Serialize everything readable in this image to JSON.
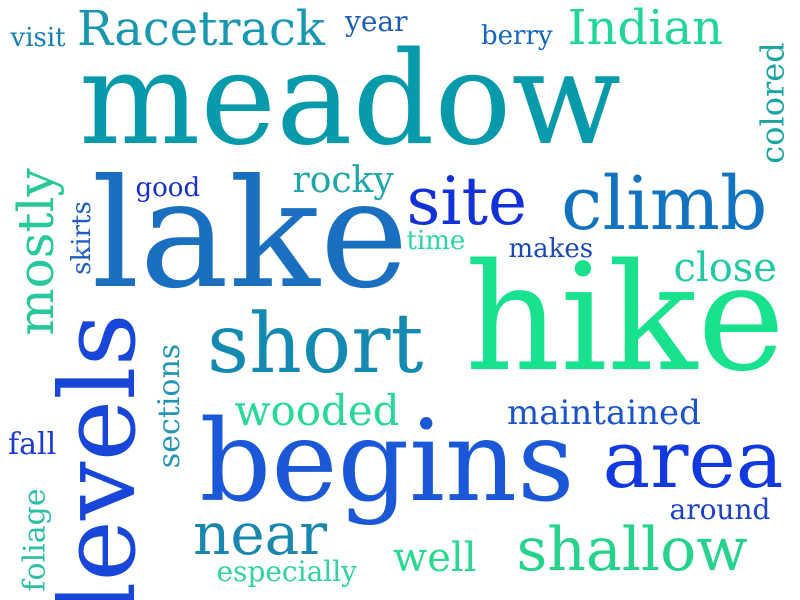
{
  "words": [
    {
      "text": "meadow",
      "color": "#079aaa",
      "rotate": 0
    },
    {
      "text": "lake",
      "color": "#1a6fc0",
      "rotate": 0
    },
    {
      "text": "hike",
      "color": "#18e28e",
      "rotate": 0
    },
    {
      "text": "begins",
      "color": "#1a58d8",
      "rotate": 0
    },
    {
      "text": "levels",
      "color": "#1846d8",
      "rotate": -90
    },
    {
      "text": "short",
      "color": "#148ab2",
      "rotate": 0
    },
    {
      "text": "climb",
      "color": "#1274c0",
      "rotate": 0
    },
    {
      "text": "area",
      "color": "#1238e0",
      "rotate": 0
    },
    {
      "text": "site",
      "color": "#1232d8",
      "rotate": 0
    },
    {
      "text": "shallow",
      "color": "#27d28c",
      "rotate": 0
    },
    {
      "text": "Racetrack",
      "color": "#1897b0",
      "rotate": 0
    },
    {
      "text": "Indian",
      "color": "#22d69a",
      "rotate": 0
    },
    {
      "text": "near",
      "color": "#1a88ae",
      "rotate": 0
    },
    {
      "text": "mostly",
      "color": "#27c89a",
      "rotate": -90
    },
    {
      "text": "wooded",
      "color": "#27d896",
      "rotate": 0
    },
    {
      "text": "close",
      "color": "#23c8a4",
      "rotate": 0
    },
    {
      "text": "rocky",
      "color": "#1ea6a8",
      "rotate": 0
    },
    {
      "text": "maintained",
      "color": "#1a54c8",
      "rotate": 0
    },
    {
      "text": "well",
      "color": "#2ad890",
      "rotate": 0
    },
    {
      "text": "colored",
      "color": "#1aa5a2",
      "rotate": -90
    },
    {
      "text": "sections",
      "color": "#2694b4",
      "rotate": -90
    },
    {
      "text": "foliage",
      "color": "#2cbfa6",
      "rotate": -90
    },
    {
      "text": "around",
      "color": "#1b42c8",
      "rotate": 0
    },
    {
      "text": "especially",
      "color": "#2fd49e",
      "rotate": 0
    },
    {
      "text": "fall",
      "color": "#1a3ad0",
      "rotate": 0
    },
    {
      "text": "good",
      "color": "#1530cc",
      "rotate": 0
    },
    {
      "text": "skirts",
      "color": "#1e5ec0",
      "rotate": -90
    },
    {
      "text": "time",
      "color": "#2bd6a6",
      "rotate": 0
    },
    {
      "text": "makes",
      "color": "#1a4ab8",
      "rotate": 0
    },
    {
      "text": "visit",
      "color": "#157eb2",
      "rotate": 0
    },
    {
      "text": "year",
      "color": "#1a5fb2",
      "rotate": 0
    },
    {
      "text": "berry",
      "color": "#1566c0",
      "rotate": 0
    }
  ]
}
